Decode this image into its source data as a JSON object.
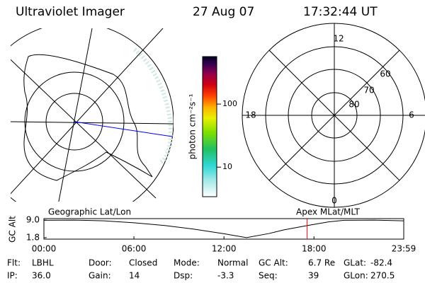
{
  "header": {
    "title": "Ultraviolet Imager",
    "date": "27 Aug 07",
    "time": "17:32:44 UT"
  },
  "left_map": {
    "label": "Geographic Lat/Lon"
  },
  "right_map": {
    "label": "Apex MLat/MLT",
    "mlt_labels": [
      "12",
      "18",
      "6",
      "0"
    ],
    "lat_labels": [
      "60",
      "70",
      "80"
    ]
  },
  "colorbar": {
    "label": "photon cm⁻²s⁻¹",
    "ylim": [
      3.4,
      566
    ],
    "log": true,
    "yticks": [
      10,
      100
    ]
  },
  "altitude_plot": {
    "type": "line",
    "ylabel": "GC Alt",
    "x": [
      0,
      2,
      4,
      6,
      8,
      10,
      12,
      13.5,
      15,
      16,
      17.5,
      19,
      20,
      22,
      23.983
    ],
    "values": [
      8.9,
      9.0,
      8.7,
      7.9,
      6.8,
      5.3,
      3.4,
      1.8,
      3.5,
      5.0,
      6.7,
      8.3,
      8.9,
      9.0,
      8.7
    ],
    "color": "#000000",
    "marker_x": 17.545,
    "marker_color": "#ff0000",
    "xlim": [
      0,
      23.983
    ],
    "xticks": [
      {
        "value": 0,
        "label": "00:00"
      },
      {
        "value": 6,
        "label": "06:00"
      },
      {
        "value": 12,
        "label": "12:00"
      },
      {
        "value": 18,
        "label": "18:00"
      },
      {
        "value": 23.983,
        "label": "23:59"
      }
    ],
    "ylim": [
      1.2,
      9.6
    ],
    "yticks": [
      {
        "value": 9,
        "label": "9.0"
      },
      1.8
    ]
  },
  "footer": [
    [
      {
        "label": "Flt:",
        "value": "LBHL"
      },
      {
        "label": "Door:",
        "value": "Closed"
      },
      {
        "label": "Mode:",
        "value": "Normal"
      },
      {
        "label": "GC Alt:",
        "value": "6.7 Re"
      },
      {
        "label": "GLat:",
        "value": "-82.4"
      }
    ],
    [
      {
        "label": "IP:",
        "value": "36.0"
      },
      {
        "label": "Gain:",
        "value": "14"
      },
      {
        "label": "Dsp:",
        "value": "-3.3"
      },
      {
        "label": "Seq:",
        "value": "39"
      },
      {
        "label": "GLon:",
        "value": "270.5"
      }
    ]
  ]
}
